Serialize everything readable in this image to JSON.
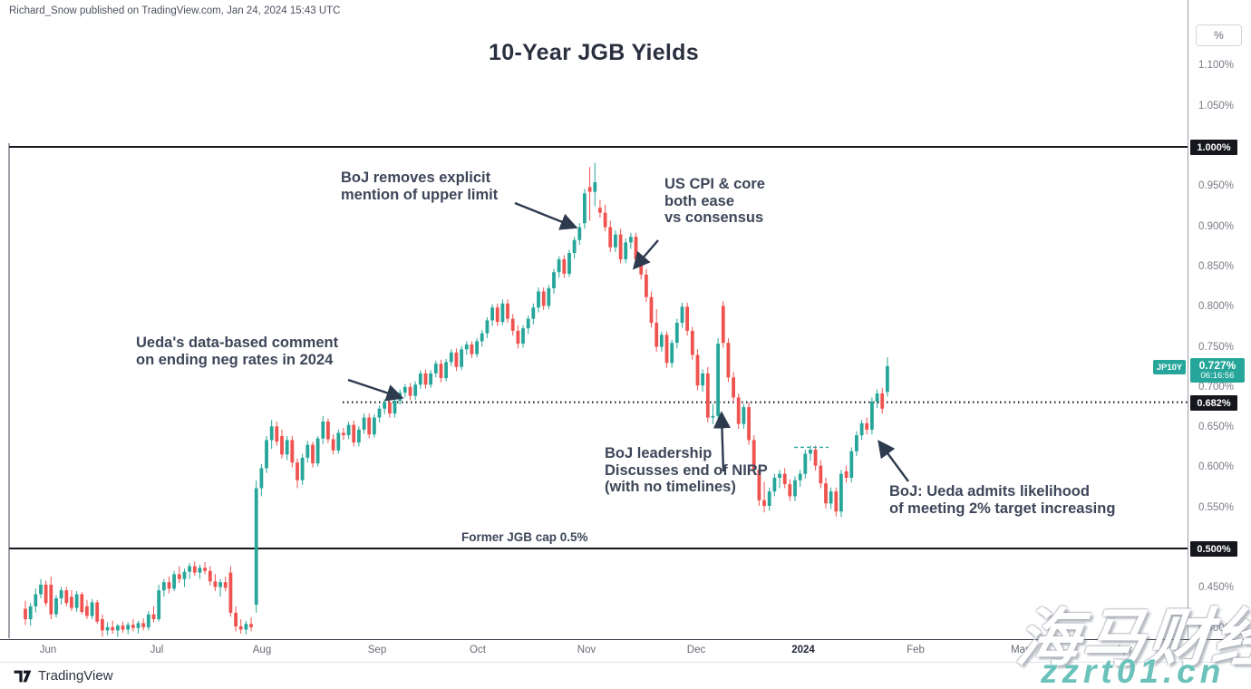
{
  "header": {
    "publisher_line": "Richard_Snow published on TradingView.com, Jan 24, 2024 15:43 UTC"
  },
  "chart_data": {
    "type": "candlestick",
    "title": "10-Year JGB Yields",
    "symbol": "JP10Y",
    "price_label": {
      "value": "0.727%",
      "countdown": "06:16:56"
    },
    "current_price": 0.727,
    "y_axis": {
      "unit_button": "%",
      "ticks": [
        {
          "label": "1.100%",
          "price": 1.1
        },
        {
          "label": "1.050%",
          "price": 1.05
        },
        {
          "label": "0.950%",
          "price": 0.95
        },
        {
          "label": "0.900%",
          "price": 0.9
        },
        {
          "label": "0.850%",
          "price": 0.85
        },
        {
          "label": "0.800%",
          "price": 0.8
        },
        {
          "label": "0.750%",
          "price": 0.75
        },
        {
          "label": "0.700%",
          "price": 0.7
        },
        {
          "label": "0.650%",
          "price": 0.65
        },
        {
          "label": "0.600%",
          "price": 0.6
        },
        {
          "label": "0.550%",
          "price": 0.55
        },
        {
          "label": "0.450%",
          "price": 0.45
        },
        {
          "label": "0.400%",
          "price": 0.4
        }
      ]
    },
    "x_axis": {
      "labels": [
        "Jun",
        "Jul",
        "Aug",
        "Sep",
        "Oct",
        "Nov",
        "Dec",
        "2024",
        "Feb",
        "Mar",
        "Apr"
      ]
    },
    "levels": [
      {
        "label": "1.000%",
        "price": 1.0,
        "style": "solid"
      },
      {
        "label": "0.682%",
        "price": 0.682,
        "style": "dotted"
      },
      {
        "label": "0.500%",
        "price": 0.5,
        "style": "solid"
      }
    ],
    "candles": [
      [
        0.425,
        0.435,
        0.405,
        0.412
      ],
      [
        0.412,
        0.432,
        0.404,
        0.428
      ],
      [
        0.428,
        0.45,
        0.42,
        0.443
      ],
      [
        0.443,
        0.462,
        0.438,
        0.455
      ],
      [
        0.455,
        0.46,
        0.428,
        0.432
      ],
      [
        0.455,
        0.465,
        0.412,
        0.418
      ],
      [
        0.418,
        0.442,
        0.414,
        0.438
      ],
      [
        0.438,
        0.452,
        0.43,
        0.448
      ],
      [
        0.448,
        0.452,
        0.428,
        0.432
      ],
      [
        0.44,
        0.448,
        0.422,
        0.426
      ],
      [
        0.426,
        0.447,
        0.421,
        0.443
      ],
      [
        0.443,
        0.446,
        0.418,
        0.421
      ],
      [
        0.428,
        0.436,
        0.412,
        0.416
      ],
      [
        0.416,
        0.437,
        0.412,
        0.433
      ],
      [
        0.433,
        0.436,
        0.406,
        0.409
      ],
      [
        0.412,
        0.418,
        0.39,
        0.398
      ],
      [
        0.398,
        0.408,
        0.392,
        0.402
      ],
      [
        0.402,
        0.41,
        0.394,
        0.398
      ],
      [
        0.398,
        0.406,
        0.39,
        0.404
      ],
      [
        0.404,
        0.409,
        0.395,
        0.399
      ],
      [
        0.399,
        0.408,
        0.393,
        0.405
      ],
      [
        0.405,
        0.412,
        0.397,
        0.401
      ],
      [
        0.401,
        0.41,
        0.394,
        0.407
      ],
      [
        0.407,
        0.413,
        0.398,
        0.402
      ],
      [
        0.402,
        0.422,
        0.398,
        0.418
      ],
      [
        0.418,
        0.428,
        0.408,
        0.412
      ],
      [
        0.412,
        0.455,
        0.409,
        0.448
      ],
      [
        0.448,
        0.462,
        0.44,
        0.458
      ],
      [
        0.458,
        0.465,
        0.444,
        0.45
      ],
      [
        0.45,
        0.472,
        0.447,
        0.468
      ],
      [
        0.468,
        0.478,
        0.457,
        0.462
      ],
      [
        0.462,
        0.475,
        0.452,
        0.471
      ],
      [
        0.471,
        0.482,
        0.462,
        0.478
      ],
      [
        0.478,
        0.484,
        0.466,
        0.47
      ],
      [
        0.47,
        0.48,
        0.462,
        0.476
      ],
      [
        0.476,
        0.483,
        0.468,
        0.472
      ],
      [
        0.472,
        0.478,
        0.454,
        0.459
      ],
      [
        0.459,
        0.468,
        0.447,
        0.452
      ],
      [
        0.452,
        0.462,
        0.44,
        0.458
      ],
      [
        0.458,
        0.465,
        0.447,
        0.451
      ],
      [
        0.47,
        0.478,
        0.415,
        0.42
      ],
      [
        0.42,
        0.428,
        0.397,
        0.403
      ],
      [
        0.403,
        0.412,
        0.394,
        0.399
      ],
      [
        0.399,
        0.41,
        0.393,
        0.406
      ],
      [
        0.406,
        0.414,
        0.397,
        0.402
      ],
      [
        0.43,
        0.585,
        0.42,
        0.575
      ],
      [
        0.575,
        0.605,
        0.565,
        0.6
      ],
      [
        0.6,
        0.64,
        0.594,
        0.635
      ],
      [
        0.635,
        0.66,
        0.624,
        0.652
      ],
      [
        0.652,
        0.658,
        0.628,
        0.633
      ],
      [
        0.64,
        0.648,
        0.612,
        0.617
      ],
      [
        0.617,
        0.64,
        0.61,
        0.635
      ],
      [
        0.635,
        0.64,
        0.601,
        0.607
      ],
      [
        0.607,
        0.612,
        0.575,
        0.585
      ],
      [
        0.585,
        0.618,
        0.579,
        0.613
      ],
      [
        0.613,
        0.634,
        0.607,
        0.629
      ],
      [
        0.629,
        0.633,
        0.601,
        0.606
      ],
      [
        0.606,
        0.64,
        0.602,
        0.637
      ],
      [
        0.637,
        0.665,
        0.63,
        0.658
      ],
      [
        0.658,
        0.662,
        0.631,
        0.636
      ],
      [
        0.636,
        0.642,
        0.617,
        0.622
      ],
      [
        0.622,
        0.648,
        0.618,
        0.644
      ],
      [
        0.644,
        0.65,
        0.635,
        0.641
      ],
      [
        0.641,
        0.658,
        0.636,
        0.654
      ],
      [
        0.654,
        0.659,
        0.627,
        0.632
      ],
      [
        0.632,
        0.652,
        0.627,
        0.648
      ],
      [
        0.648,
        0.668,
        0.643,
        0.663
      ],
      [
        0.663,
        0.668,
        0.637,
        0.642
      ],
      [
        0.642,
        0.667,
        0.638,
        0.663
      ],
      [
        0.663,
        0.678,
        0.657,
        0.674
      ],
      [
        0.674,
        0.686,
        0.667,
        0.682
      ],
      [
        0.682,
        0.686,
        0.663,
        0.668
      ],
      [
        0.668,
        0.688,
        0.663,
        0.684
      ],
      [
        0.684,
        0.698,
        0.679,
        0.694
      ],
      [
        0.694,
        0.705,
        0.688,
        0.701
      ],
      [
        0.701,
        0.706,
        0.685,
        0.69
      ],
      [
        0.69,
        0.708,
        0.685,
        0.704
      ],
      [
        0.704,
        0.722,
        0.699,
        0.718
      ],
      [
        0.718,
        0.723,
        0.699,
        0.704
      ],
      [
        0.704,
        0.722,
        0.7,
        0.718
      ],
      [
        0.718,
        0.734,
        0.713,
        0.73
      ],
      [
        0.73,
        0.735,
        0.707,
        0.712
      ],
      [
        0.712,
        0.736,
        0.708,
        0.732
      ],
      [
        0.732,
        0.748,
        0.727,
        0.744
      ],
      [
        0.744,
        0.749,
        0.721,
        0.726
      ],
      [
        0.726,
        0.752,
        0.722,
        0.748
      ],
      [
        0.748,
        0.758,
        0.741,
        0.754
      ],
      [
        0.754,
        0.758,
        0.737,
        0.742
      ],
      [
        0.742,
        0.762,
        0.738,
        0.758
      ],
      [
        0.758,
        0.772,
        0.751,
        0.768
      ],
      [
        0.768,
        0.788,
        0.762,
        0.784
      ],
      [
        0.784,
        0.804,
        0.777,
        0.8
      ],
      [
        0.8,
        0.805,
        0.777,
        0.782
      ],
      [
        0.782,
        0.81,
        0.778,
        0.805
      ],
      [
        0.805,
        0.81,
        0.781,
        0.786
      ],
      [
        0.786,
        0.792,
        0.765,
        0.771
      ],
      [
        0.771,
        0.778,
        0.749,
        0.755
      ],
      [
        0.755,
        0.778,
        0.75,
        0.774
      ],
      [
        0.774,
        0.79,
        0.767,
        0.786
      ],
      [
        0.786,
        0.805,
        0.779,
        0.8
      ],
      [
        0.8,
        0.825,
        0.794,
        0.82
      ],
      [
        0.82,
        0.825,
        0.797,
        0.802
      ],
      [
        0.802,
        0.828,
        0.798,
        0.824
      ],
      [
        0.824,
        0.848,
        0.817,
        0.844
      ],
      [
        0.844,
        0.864,
        0.837,
        0.86
      ],
      [
        0.86,
        0.865,
        0.837,
        0.842
      ],
      [
        0.842,
        0.872,
        0.838,
        0.868
      ],
      [
        0.868,
        0.888,
        0.861,
        0.884
      ],
      [
        0.884,
        0.905,
        0.878,
        0.9
      ],
      [
        0.905,
        0.948,
        0.898,
        0.942
      ],
      [
        0.95,
        0.975,
        0.908,
        0.944
      ],
      [
        0.944,
        0.98,
        0.926,
        0.956
      ],
      [
        0.924,
        0.934,
        0.912,
        0.918
      ],
      [
        0.918,
        0.928,
        0.895,
        0.9
      ],
      [
        0.9,
        0.908,
        0.869,
        0.875
      ],
      [
        0.875,
        0.896,
        0.869,
        0.891
      ],
      [
        0.891,
        0.898,
        0.855,
        0.86
      ],
      [
        0.86,
        0.886,
        0.855,
        0.881
      ],
      [
        0.881,
        0.893,
        0.873,
        0.888
      ],
      [
        0.888,
        0.893,
        0.855,
        0.86
      ],
      [
        0.86,
        0.866,
        0.835,
        0.841
      ],
      [
        0.841,
        0.848,
        0.807,
        0.813
      ],
      [
        0.813,
        0.82,
        0.775,
        0.781
      ],
      [
        0.781,
        0.798,
        0.745,
        0.751
      ],
      [
        0.751,
        0.77,
        0.745,
        0.766
      ],
      [
        0.766,
        0.77,
        0.725,
        0.731
      ],
      [
        0.731,
        0.76,
        0.725,
        0.756
      ],
      [
        0.756,
        0.786,
        0.749,
        0.781
      ],
      [
        0.781,
        0.806,
        0.775,
        0.801
      ],
      [
        0.801,
        0.806,
        0.765,
        0.771
      ],
      [
        0.771,
        0.776,
        0.735,
        0.741
      ],
      [
        0.741,
        0.748,
        0.697,
        0.703
      ],
      [
        0.703,
        0.723,
        0.695,
        0.718
      ],
      [
        0.718,
        0.726,
        0.657,
        0.663
      ],
      [
        0.663,
        0.68,
        0.655,
        0.665
      ],
      [
        0.665,
        0.762,
        0.656,
        0.755
      ],
      [
        0.802,
        0.808,
        0.75,
        0.756
      ],
      [
        0.756,
        0.762,
        0.707,
        0.713
      ],
      [
        0.713,
        0.72,
        0.682,
        0.688
      ],
      [
        0.688,
        0.693,
        0.649,
        0.655
      ],
      [
        0.655,
        0.68,
        0.649,
        0.676
      ],
      [
        0.676,
        0.682,
        0.629,
        0.635
      ],
      [
        0.635,
        0.641,
        0.592,
        0.598
      ],
      [
        0.598,
        0.604,
        0.553,
        0.56
      ],
      [
        0.56,
        0.583,
        0.545,
        0.553
      ],
      [
        0.553,
        0.576,
        0.547,
        0.571
      ],
      [
        0.571,
        0.593,
        0.565,
        0.588
      ],
      [
        0.588,
        0.598,
        0.575,
        0.593
      ],
      [
        0.593,
        0.6,
        0.575,
        0.58
      ],
      [
        0.58,
        0.586,
        0.559,
        0.565
      ],
      [
        0.565,
        0.59,
        0.559,
        0.585
      ],
      [
        0.585,
        0.598,
        0.577,
        0.593
      ],
      [
        0.593,
        0.623,
        0.587,
        0.618
      ],
      [
        0.618,
        0.628,
        0.609,
        0.623
      ],
      [
        0.623,
        0.628,
        0.597,
        0.603
      ],
      [
        0.603,
        0.61,
        0.575,
        0.581
      ],
      [
        0.581,
        0.588,
        0.55,
        0.556
      ],
      [
        0.556,
        0.576,
        0.549,
        0.571
      ],
      [
        0.571,
        0.576,
        0.54,
        0.546
      ],
      [
        0.546,
        0.598,
        0.539,
        0.593
      ],
      [
        0.596,
        0.603,
        0.582,
        0.588
      ],
      [
        0.588,
        0.626,
        0.582,
        0.621
      ],
      [
        0.621,
        0.646,
        0.615,
        0.641
      ],
      [
        0.641,
        0.66,
        0.635,
        0.656
      ],
      [
        0.656,
        0.663,
        0.642,
        0.648
      ],
      [
        0.648,
        0.688,
        0.642,
        0.683
      ],
      [
        0.683,
        0.698,
        0.675,
        0.693
      ],
      [
        0.693,
        0.7,
        0.668,
        0.674
      ],
      [
        0.695,
        0.738,
        0.689,
        0.727
      ]
    ]
  },
  "annotations": {
    "boj_upper_limit": {
      "lines": [
        "BoJ removes explicit",
        "mention of upper limit"
      ]
    },
    "us_cpi": {
      "lines": [
        "US CPI & core",
        "both ease",
        "vs consensus"
      ]
    },
    "ueda_comment": {
      "lines": [
        "Ueda's data-based comment",
        "on ending neg rates in 2024"
      ]
    },
    "boj_leadership": {
      "lines": [
        "BoJ leadership",
        "Discusses end of NIRP",
        "(with no timelines)"
      ]
    },
    "boj_ueda_admits": {
      "lines": [
        "BoJ: Ueda admits likelihood",
        "of meeting 2% target increasing"
      ]
    },
    "former_cap": {
      "label": "Former JGB cap 0.5%"
    }
  },
  "footer": {
    "logo_text": "TradingView"
  },
  "watermarks": {
    "chinese": "海马财经",
    "url": "zzrt01.cn"
  },
  "colors": {
    "up": "#26a69a",
    "down": "#ef5350",
    "level_line": "#15171d",
    "arrow": "#2e3a4e",
    "watermark_teal": "#6ac2ba"
  }
}
